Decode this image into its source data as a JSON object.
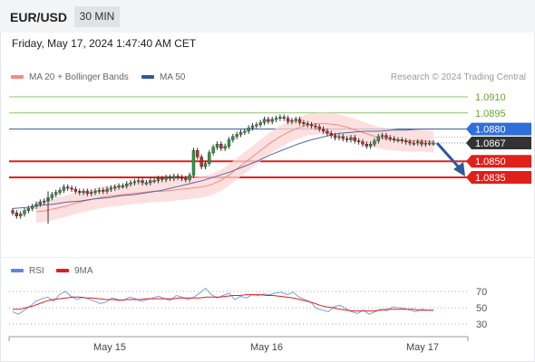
{
  "header": {
    "symbol": "EUR/USD",
    "timeframe": "30 MIN"
  },
  "datetime": "Friday, May 17, 2024 1:47:40 AM CET",
  "legend": {
    "ma20_label": "MA 20 + Bollinger Bands",
    "ma20_color": "#f28b82",
    "ma50_label": "MA 50",
    "ma50_color": "#2e5a99",
    "credit": "Research © 2024 Trading Central"
  },
  "rsi_legend": {
    "rsi_label": "RSI",
    "rsi_color": "#5b86e5",
    "ma9_label": "9MA",
    "ma9_color": "#e0201b"
  },
  "chart_data": [
    {
      "type": "candlestick",
      "title": "",
      "x_tick_labels": [
        "May 15",
        "May 16",
        "May 17"
      ],
      "y_min": 1.0795,
      "y_max": 1.0925,
      "levels": [
        {
          "label": "1.0910",
          "value": 1.091,
          "kind": "resistance"
        },
        {
          "label": "1.0895",
          "value": 1.0895,
          "kind": "resistance"
        },
        {
          "label": "1.0880",
          "value": 1.088,
          "kind": "pivot"
        },
        {
          "label": "1.0867",
          "value": 1.0867,
          "kind": "last_price"
        },
        {
          "label": "1.0850",
          "value": 1.085,
          "kind": "support"
        },
        {
          "label": "1.0835",
          "value": 1.0835,
          "kind": "support"
        }
      ],
      "close": [
        1.0802,
        1.0799,
        1.0801,
        1.0804,
        1.0806,
        1.0808,
        1.081,
        1.0812,
        1.0813,
        1.0816,
        1.0819,
        1.0821,
        1.0823,
        1.0826,
        1.0825,
        1.0824,
        1.0822,
        1.0821,
        1.0822,
        1.082,
        1.0821,
        1.0822,
        1.0823,
        1.0822,
        1.0824,
        1.0825,
        1.0826,
        1.0827,
        1.0827,
        1.0829,
        1.083,
        1.0831,
        1.0832,
        1.083,
        1.083,
        1.0832,
        1.0832,
        1.0834,
        1.0833,
        1.0835,
        1.0834,
        1.0836,
        1.0835,
        1.0834,
        1.0833,
        1.0837,
        1.086,
        1.0854,
        1.0845,
        1.0848,
        1.0858,
        1.0863,
        1.0866,
        1.0862,
        1.0864,
        1.087,
        1.0873,
        1.0875,
        1.0877,
        1.0878,
        1.0881,
        1.0883,
        1.0884,
        1.0886,
        1.0889,
        1.0887,
        1.0889,
        1.089,
        1.0891,
        1.089,
        1.0887,
        1.0888,
        1.0889,
        1.0886,
        1.0885,
        1.0884,
        1.0883,
        1.0882,
        1.088,
        1.0878,
        1.0876,
        1.0874,
        1.0872,
        1.0873,
        1.0871,
        1.087,
        1.0872,
        1.0869,
        1.0868,
        1.0866,
        1.0864,
        1.0866,
        1.0869,
        1.0873,
        1.0874,
        1.0872,
        1.0871,
        1.087,
        1.087,
        1.0869,
        1.0868,
        1.0867,
        1.0867,
        1.0868,
        1.0866,
        1.0867,
        1.0867,
        1.0867
      ],
      "ma20": [
        1.0803,
        1.0804,
        1.0806,
        1.0808,
        1.0811,
        1.0813,
        1.0815,
        1.0817,
        1.0818,
        1.0819,
        1.082,
        1.0821,
        1.0822,
        1.0822,
        1.0823,
        1.0824,
        1.0825,
        1.0826,
        1.0828,
        1.0832,
        1.0838,
        1.0845,
        1.0852,
        1.0859,
        1.0866,
        1.0872,
        1.0877,
        1.0881,
        1.0884,
        1.0885,
        1.0885,
        1.0884,
        1.0882,
        1.0879,
        1.0876,
        1.0873,
        1.0871,
        1.087,
        1.0869,
        1.0869,
        1.0869,
        1.0868
      ],
      "ma50": [
        1.0806,
        1.0807,
        1.0809,
        1.081,
        1.0812,
        1.0813,
        1.0815,
        1.0816,
        1.0818,
        1.0819,
        1.0821,
        1.0823,
        1.0826,
        1.0829,
        1.0832,
        1.0836,
        1.084,
        1.0845,
        1.085,
        1.0856,
        1.0861,
        1.0866,
        1.087,
        1.0873,
        1.0876,
        1.0877,
        1.0878,
        1.0878,
        1.0879,
        1.0879,
        1.088,
        1.088
      ],
      "bb_width": 0.001
    },
    {
      "type": "line",
      "title": "",
      "y_tick_labels": [
        "70",
        "50",
        "30"
      ],
      "y_ticks": [
        70,
        50,
        30
      ],
      "ylim": [
        20,
        85
      ],
      "series": [
        {
          "name": "RSI",
          "values": [
            45,
            42,
            47,
            52,
            58,
            61,
            63,
            58,
            66,
            70,
            64,
            60,
            63,
            61,
            58,
            55,
            57,
            62,
            60,
            59,
            63,
            61,
            58,
            60,
            62,
            64,
            61,
            59,
            65,
            63,
            60,
            63,
            68,
            74,
            66,
            62,
            65,
            68,
            60,
            64,
            62,
            66,
            65,
            67,
            66,
            68,
            69,
            66,
            69,
            63,
            60,
            57,
            49,
            47,
            45,
            51,
            53,
            49,
            45,
            43,
            47,
            42,
            45,
            48,
            46,
            51,
            50,
            49,
            47,
            45,
            48,
            47,
            47
          ]
        },
        {
          "name": "9MA",
          "values": [
            48,
            48,
            50,
            52,
            55,
            58,
            60,
            61,
            62,
            63,
            63,
            62,
            62,
            61,
            60,
            60,
            59,
            60,
            60,
            60,
            61,
            61,
            61,
            61,
            61,
            62,
            62,
            62,
            62,
            63,
            63,
            63,
            64,
            65,
            65,
            66,
            66,
            66,
            65,
            65,
            64,
            63,
            62,
            60,
            58,
            56,
            53,
            51,
            50,
            48,
            47,
            46,
            46,
            46,
            46,
            47,
            48,
            48,
            48,
            48,
            48,
            47,
            47,
            47
          ]
        }
      ]
    }
  ]
}
